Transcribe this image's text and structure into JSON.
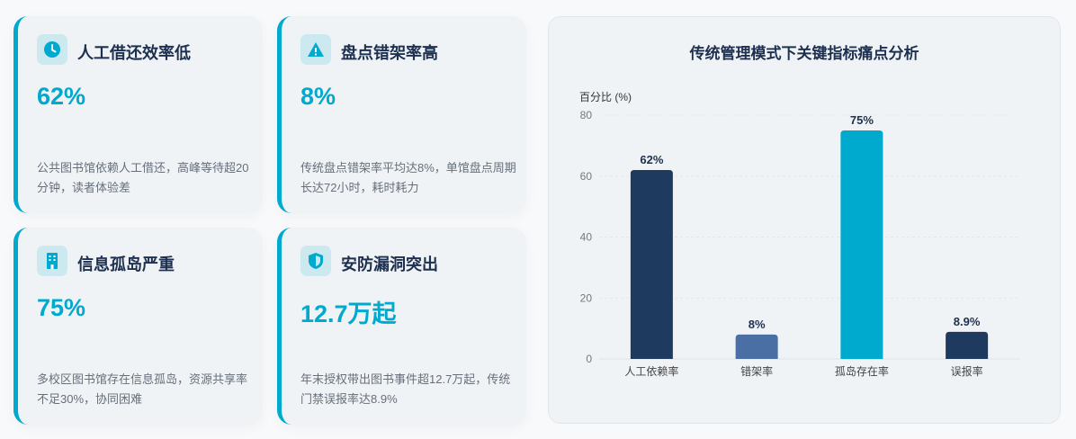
{
  "cards": [
    {
      "icon": "clock-icon",
      "title": "人工借还效率低",
      "value": "62%",
      "desc": "公共图书馆依赖人工借还，高峰等待超20分钟，读者体验差"
    },
    {
      "icon": "warning-icon",
      "title": "盘点错架率高",
      "value": "8%",
      "desc": "传统盘点错架率平均达8%，单馆盘点周期长达72小时，耗时耗力"
    },
    {
      "icon": "building-icon",
      "title": "信息孤岛严重",
      "value": "75%",
      "desc": "多校区图书馆存在信息孤岛，资源共享率不足30%，协同困难"
    },
    {
      "icon": "shield-icon",
      "title": "安防漏洞突出",
      "value": "12.7万起",
      "desc": "年末授权带出图书事件超12.7万起，传统门禁误报率达8.9%"
    }
  ],
  "colors": {
    "accent": "#00a9ce",
    "dark": "#1e3a5f",
    "mid": "#4a6fa5"
  },
  "chart_data": {
    "type": "bar",
    "title": "传统管理模式下关键指标痛点分析",
    "ylabel": "百分比 (%)",
    "categories": [
      "人工依赖率",
      "错架率",
      "孤岛存在率",
      "误报率"
    ],
    "values": [
      62,
      8,
      75,
      8.9
    ],
    "data_labels": [
      "62%",
      "8%",
      "75%",
      "8.9%"
    ],
    "bar_colors": [
      "#1e3a5f",
      "#4a6fa5",
      "#00a9ce",
      "#1e3a5f"
    ],
    "ylim": [
      0,
      80
    ],
    "yticks": [
      0,
      20,
      40,
      60,
      80
    ],
    "grid": true
  }
}
